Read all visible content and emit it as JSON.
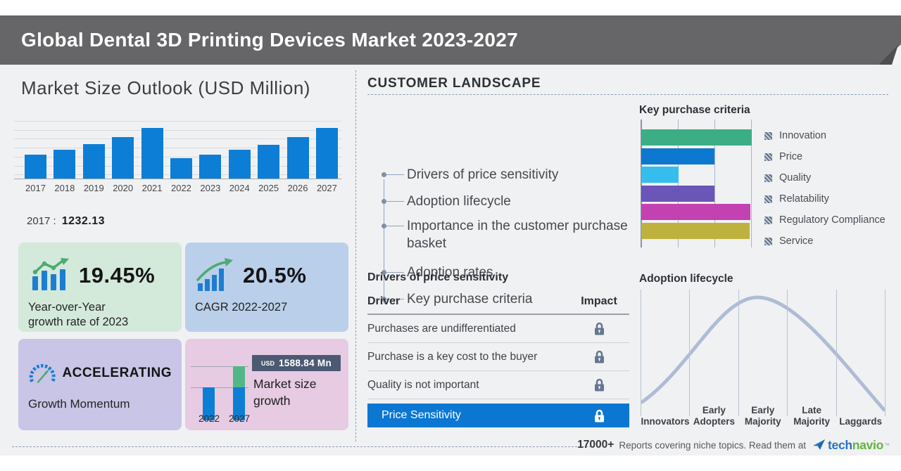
{
  "header": {
    "title": "Global Dental 3D Printing Devices Market 2023-2027"
  },
  "market_outlook": {
    "title": "Market Size Outlook (USD Million)",
    "base_year_label": "2017 :",
    "base_year_value": "1232.13"
  },
  "stats": {
    "yoy": {
      "value": "19.45%",
      "label_lines": [
        "Year-over-Year",
        "growth rate of 2023"
      ]
    },
    "cagr": {
      "value": "20.5%",
      "label": "CAGR 2022-2027"
    },
    "momentum": {
      "value": "ACCELERATING",
      "label": "Growth Momentum"
    },
    "growth": {
      "badge_currency": "USD",
      "badge_value": "1588.84 Mn",
      "label_lines": [
        "Market size",
        "growth"
      ],
      "year_start": "2022",
      "year_end": "2027"
    }
  },
  "customer_landscape": {
    "heading": "CUSTOMER LANDSCAPE",
    "items": [
      "Drivers of price sensitivity",
      "Adoption lifecycle",
      "Importance in the customer purchase basket",
      "Adoption rates",
      "Key purchase criteria"
    ]
  },
  "price_sensitivity": {
    "title": "Drivers of price sensitivity",
    "columns": {
      "driver": "Driver",
      "impact": "Impact"
    },
    "rows": [
      "Purchases are undifferentiated",
      "Purchase is a key cost to the buyer",
      "Quality is not important"
    ],
    "highlight_row": "Price Sensitivity"
  },
  "footer": {
    "count": "17000+",
    "text": "Reports covering niche topics. Read them at",
    "brand": {
      "part1": "tech",
      "part2": "navio",
      "tm": "™"
    }
  },
  "colors": {
    "header_gray": "#666668",
    "accent_blue": "#0d7ed6",
    "highlight_row_blue": "#0b77d3",
    "card_green": "#d3e9da",
    "card_blue": "#bacfe9",
    "card_purple": "#c9c5e6",
    "card_pink": "#e6cbe2"
  },
  "chart_data": [
    {
      "type": "bar",
      "title": "Market Size Outlook (USD Million)",
      "categories": [
        "2017",
        "2018",
        "2019",
        "2020",
        "2021",
        "2022",
        "2023",
        "2024",
        "2025",
        "2026",
        "2027"
      ],
      "values": [
        1232.13,
        1486,
        1776,
        2150,
        2609,
        1040,
        1242,
        1497,
        1765,
        2150,
        2629
      ],
      "note": "2017 value labeled as 1232.13; remaining values estimated from bar heights",
      "ylabel": "USD Million",
      "ylim": [
        0,
        3280
      ],
      "bar_color": "#0d7ed6",
      "grid": true
    },
    {
      "type": "bar",
      "orientation": "horizontal",
      "title": "Key purchase criteria",
      "categories": [
        "Innovation",
        "Price",
        "Quality",
        "Relatability",
        "Regulatory Compliance",
        "Service"
      ],
      "values": [
        100,
        66,
        34,
        66,
        99,
        98
      ],
      "value_unit": "percent of axis width, estimated",
      "colors": [
        "#3bae86",
        "#0d78cf",
        "#36bdee",
        "#6a55b8",
        "#c242b2",
        "#bdb23e"
      ],
      "legend_position": "right",
      "grid": true
    },
    {
      "type": "bar",
      "title": "Market size growth",
      "categories": [
        "2022",
        "2027"
      ],
      "values": [
        1040,
        2629
      ],
      "annotation": "USD 1588.84 Mn",
      "note": "2027 bar stacked: blue base equal to 2022 plus green growth segment"
    },
    {
      "type": "line",
      "title": "Adoption lifecycle",
      "categories": [
        "Innovators",
        "Early Adopters",
        "Early Majority",
        "Late Majority",
        "Laggards"
      ],
      "shape": "bell curve peaking within Early Majority",
      "labels_two_line": [
        [
          "Innovators"
        ],
        [
          "Early",
          "Adopters"
        ],
        [
          "Early",
          "Majority"
        ],
        [
          "Late",
          "Majority"
        ],
        [
          "Laggards"
        ]
      ]
    }
  ]
}
